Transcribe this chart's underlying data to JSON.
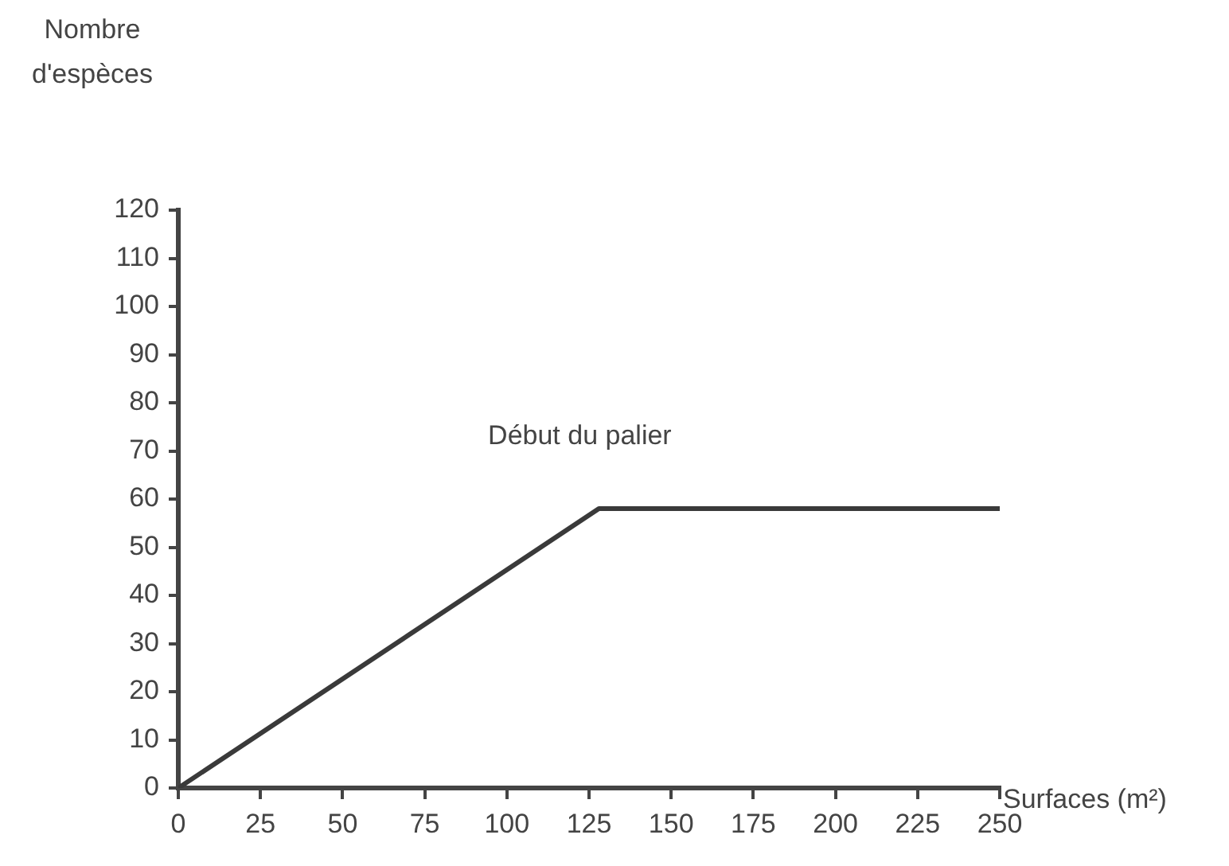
{
  "chart_data": {
    "type": "line",
    "xlabel": "Surfaces (m²)",
    "ylabel": "Nombre d'espèces",
    "x": [
      0,
      128,
      250
    ],
    "series": [
      {
        "color": "#3a3a3a",
        "values": [
          0,
          58,
          58
        ]
      }
    ],
    "xlim": [
      0,
      250
    ],
    "xticks": [
      0,
      25,
      50,
      75,
      100,
      125,
      150,
      175,
      200,
      225,
      250
    ],
    "ylim": [
      0,
      120
    ],
    "yticks": [
      0,
      10,
      20,
      30,
      40,
      50,
      60,
      70,
      80,
      90,
      100,
      110,
      120
    ],
    "annotations": [
      {
        "text": "Début du palier",
        "x": 128,
        "y": 58
      }
    ],
    "grid": false,
    "legend": false,
    "marker": "none",
    "line_style": "solid"
  }
}
